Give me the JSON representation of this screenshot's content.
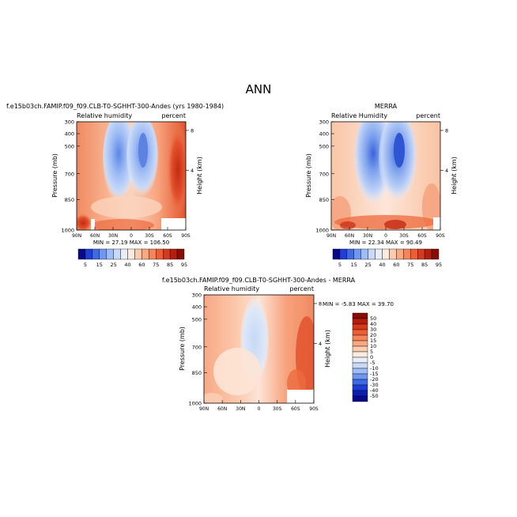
{
  "figure": {
    "title": "ANN"
  },
  "chart_data": [
    {
      "type": "heatmap",
      "title": "f.e15b03ch.FAMIP.f09_f09.CLB-T0-SGHHT-300-Andes (yrs 1980-1984)",
      "variable": "Relative humidity",
      "units": "percent",
      "xlabel": "",
      "ylabel": "Pressure (mb)",
      "y2label": "Height (km)",
      "x_ticks": [
        "90N",
        "60N",
        "30N",
        "0",
        "30S",
        "60S",
        "90S"
      ],
      "y_ticks": [
        "300",
        "400",
        "500",
        "700",
        "850",
        "1000"
      ],
      "y2_ticks": [
        "8",
        "4"
      ],
      "stats": "MIN = 27.19   MAX = 106.50",
      "colorbar": {
        "labels": [
          "5",
          "15",
          "25",
          "40",
          "60",
          "75",
          "85",
          "95"
        ],
        "colors": [
          "#08088a",
          "#1f3dd8",
          "#3f6ae6",
          "#6f96f0",
          "#9ebcf7",
          "#c9daf8",
          "#e8eef8",
          "#fdebe0",
          "#fbcbb0",
          "#f9a882",
          "#f5845a",
          "#ee5e35",
          "#d8391c",
          "#b41e0e",
          "#8a0c05"
        ]
      }
    },
    {
      "type": "heatmap",
      "title": "MERRA",
      "variable": "Relative Humidity",
      "units": "percent",
      "xlabel": "",
      "ylabel": "Pressure (mb)",
      "y2label": "Height (km)",
      "x_ticks": [
        "90N",
        "60N",
        "30N",
        "0",
        "30S",
        "60S",
        "90S"
      ],
      "y_ticks": [
        "300",
        "400",
        "500",
        "700",
        "850",
        "1000"
      ],
      "y2_ticks": [
        "8",
        "4"
      ],
      "stats": "MIN = 22.34   MAX = 90.49",
      "colorbar": {
        "labels": [
          "5",
          "15",
          "25",
          "40",
          "60",
          "75",
          "85",
          "95"
        ],
        "colors": [
          "#08088a",
          "#1f3dd8",
          "#3f6ae6",
          "#6f96f0",
          "#9ebcf7",
          "#c9daf8",
          "#e8eef8",
          "#fdebe0",
          "#fbcbb0",
          "#f9a882",
          "#f5845a",
          "#ee5e35",
          "#d8391c",
          "#b41e0e",
          "#8a0c05"
        ]
      }
    },
    {
      "type": "heatmap",
      "title": "f.e15b03ch.FAMIP.f09_f09.CLB-T0-SGHHT-300-Andes - MERRA",
      "variable": "Relative humidity",
      "units": "percent",
      "xlabel": "",
      "ylabel": "Pressure (mb)",
      "y2label": "Height (km)",
      "x_ticks": [
        "90N",
        "60N",
        "30N",
        "0",
        "30S",
        "60S",
        "90S"
      ],
      "y_ticks": [
        "300",
        "400",
        "500",
        "700",
        "850",
        "1000"
      ],
      "y2_ticks": [
        "8",
        "4"
      ],
      "stats": "MIN =  -5.83   MAX =  39.70",
      "colorbar": {
        "labels": [
          "50",
          "40",
          "30",
          "20",
          "15",
          "10",
          "5",
          "0",
          "-5",
          "-10",
          "-15",
          "-20",
          "-30",
          "-40",
          "-50"
        ],
        "colors": [
          "#8a0c05",
          "#b41e0e",
          "#d8391c",
          "#ee5e35",
          "#f5845a",
          "#f9a882",
          "#fbcbb0",
          "#fdebe0",
          "#e8eef8",
          "#c9daf8",
          "#9ebcf7",
          "#6f96f0",
          "#3f6ae6",
          "#1f3dd8",
          "#0c20b0",
          "#08088a"
        ]
      }
    }
  ]
}
